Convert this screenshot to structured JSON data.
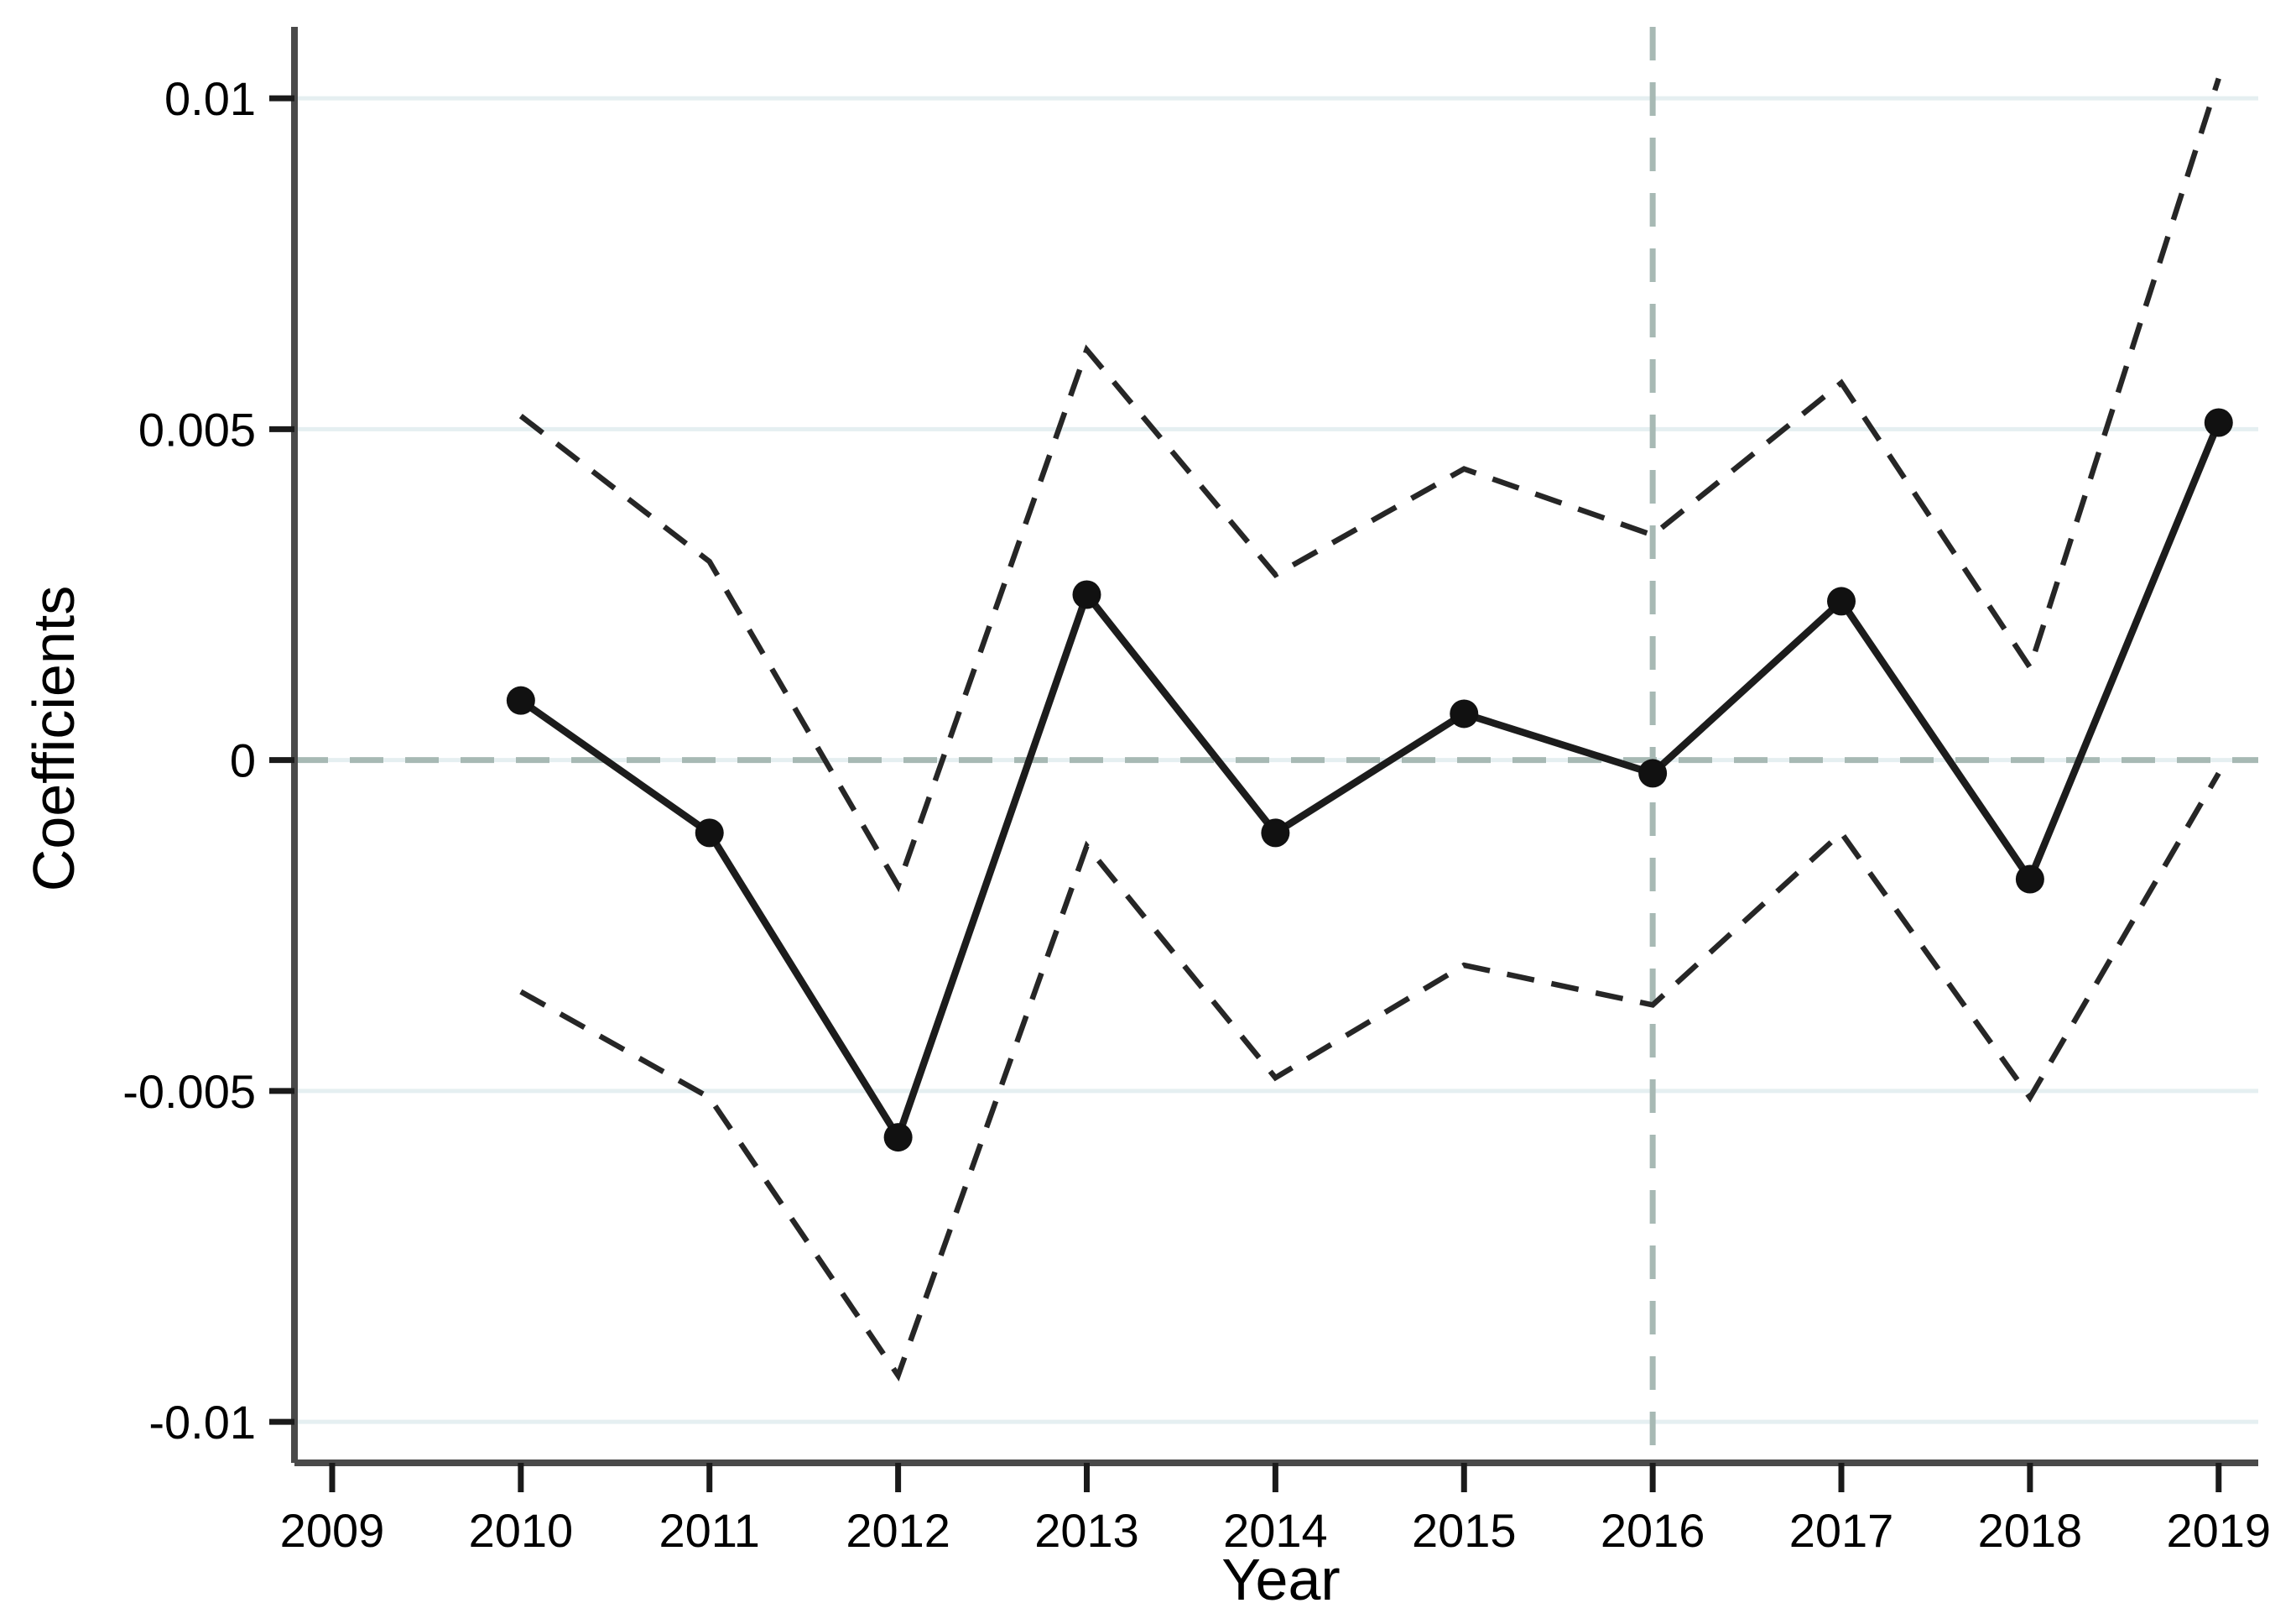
{
  "figure": {
    "background": "#ffffff"
  },
  "chart_data": {
    "type": "line",
    "title": "",
    "xlabel": "Year",
    "ylabel": "Coefficients",
    "grid": "horizontal",
    "legend": "none",
    "x_axis": {
      "ticks": [
        2009,
        2010,
        2011,
        2012,
        2013,
        2014,
        2015,
        2016,
        2017,
        2018,
        2019
      ],
      "tick_labels": [
        "2009",
        "2010",
        "2011",
        "2012",
        "2013",
        "2014",
        "2015",
        "2016",
        "2017",
        "2018",
        "2019"
      ],
      "range": [
        2008.8,
        2019.21
      ]
    },
    "y_axis": {
      "ticks": [
        0.01,
        0.005,
        0,
        -0.005,
        -0.01
      ],
      "tick_labels": [
        "0.01",
        "0.005",
        "0",
        "-0.005",
        "-0.01"
      ],
      "range": [
        -0.01062,
        0.01108
      ]
    },
    "x": [
      2010,
      2011,
      2012,
      2013,
      2014,
      2015,
      2016,
      2017,
      2018,
      2019
    ],
    "series": [
      {
        "name": "coefficient",
        "style": "solid-with-markers",
        "values": [
          0.0009,
          -0.0011,
          -0.0057,
          0.0025,
          -0.0011,
          0.0007,
          -0.0002,
          0.0024,
          -0.0018,
          0.0051
        ]
      },
      {
        "name": "ci-upper",
        "style": "dashed",
        "values": [
          0.0052,
          0.003,
          -0.0019,
          0.0062,
          0.0028,
          0.0044,
          0.0034,
          0.0057,
          0.0014,
          0.0103
        ]
      },
      {
        "name": "ci-lower",
        "style": "dashed",
        "values": [
          -0.0035,
          -0.0051,
          -0.0093,
          -0.0013,
          -0.0048,
          -0.0031,
          -0.0037,
          -0.0011,
          -0.0051,
          -0.0002
        ]
      }
    ],
    "reference_lines": {
      "horizontal_at_y": 0,
      "vertical_at_x": 2016
    },
    "colors": {
      "series_line": "#1c1c1c",
      "marker": "#111111",
      "ci_dash": "#262626",
      "reference_dash": "#a7b9b4",
      "gridline": "#e5eff1",
      "axis_line": "#4a4a4a",
      "tick_mark": "#1a1a1a",
      "text": "#000000"
    }
  }
}
